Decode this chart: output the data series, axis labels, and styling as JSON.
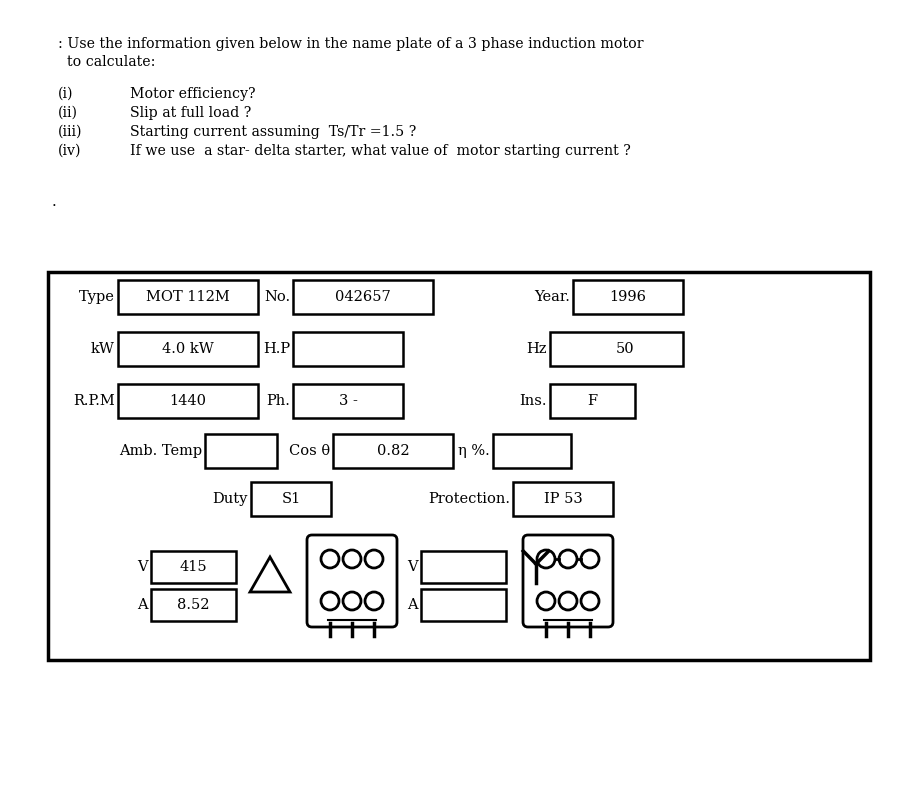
{
  "title_line1": ": Use the information given below in the name plate of a 3 phase induction motor",
  "title_line2": "  to calculate:",
  "items": [
    [
      "(i)",
      "Motor efficiency?"
    ],
    [
      "(ii)",
      "Slip at full load ?"
    ],
    [
      "(iii)",
      "Starting current assuming  Ts/Tr =1.5 ?"
    ],
    [
      "(iv)",
      "If we use  a star- delta starter, what value of  motor starting current ?"
    ]
  ],
  "type_val": "MOT 112M",
  "no_val": "042657",
  "year_val": "1996",
  "kw_val": "4.0 kW",
  "hz_val": "50",
  "rpm_val": "1440",
  "ph_val": "3 -",
  "ins_val": "F",
  "cos_val": "0.82",
  "duty_val": "S1",
  "prot_val": "IP 53",
  "v_delta_val": "415",
  "a_delta_val": "8.52",
  "bg_color": "#ffffff",
  "text_color": "#000000"
}
